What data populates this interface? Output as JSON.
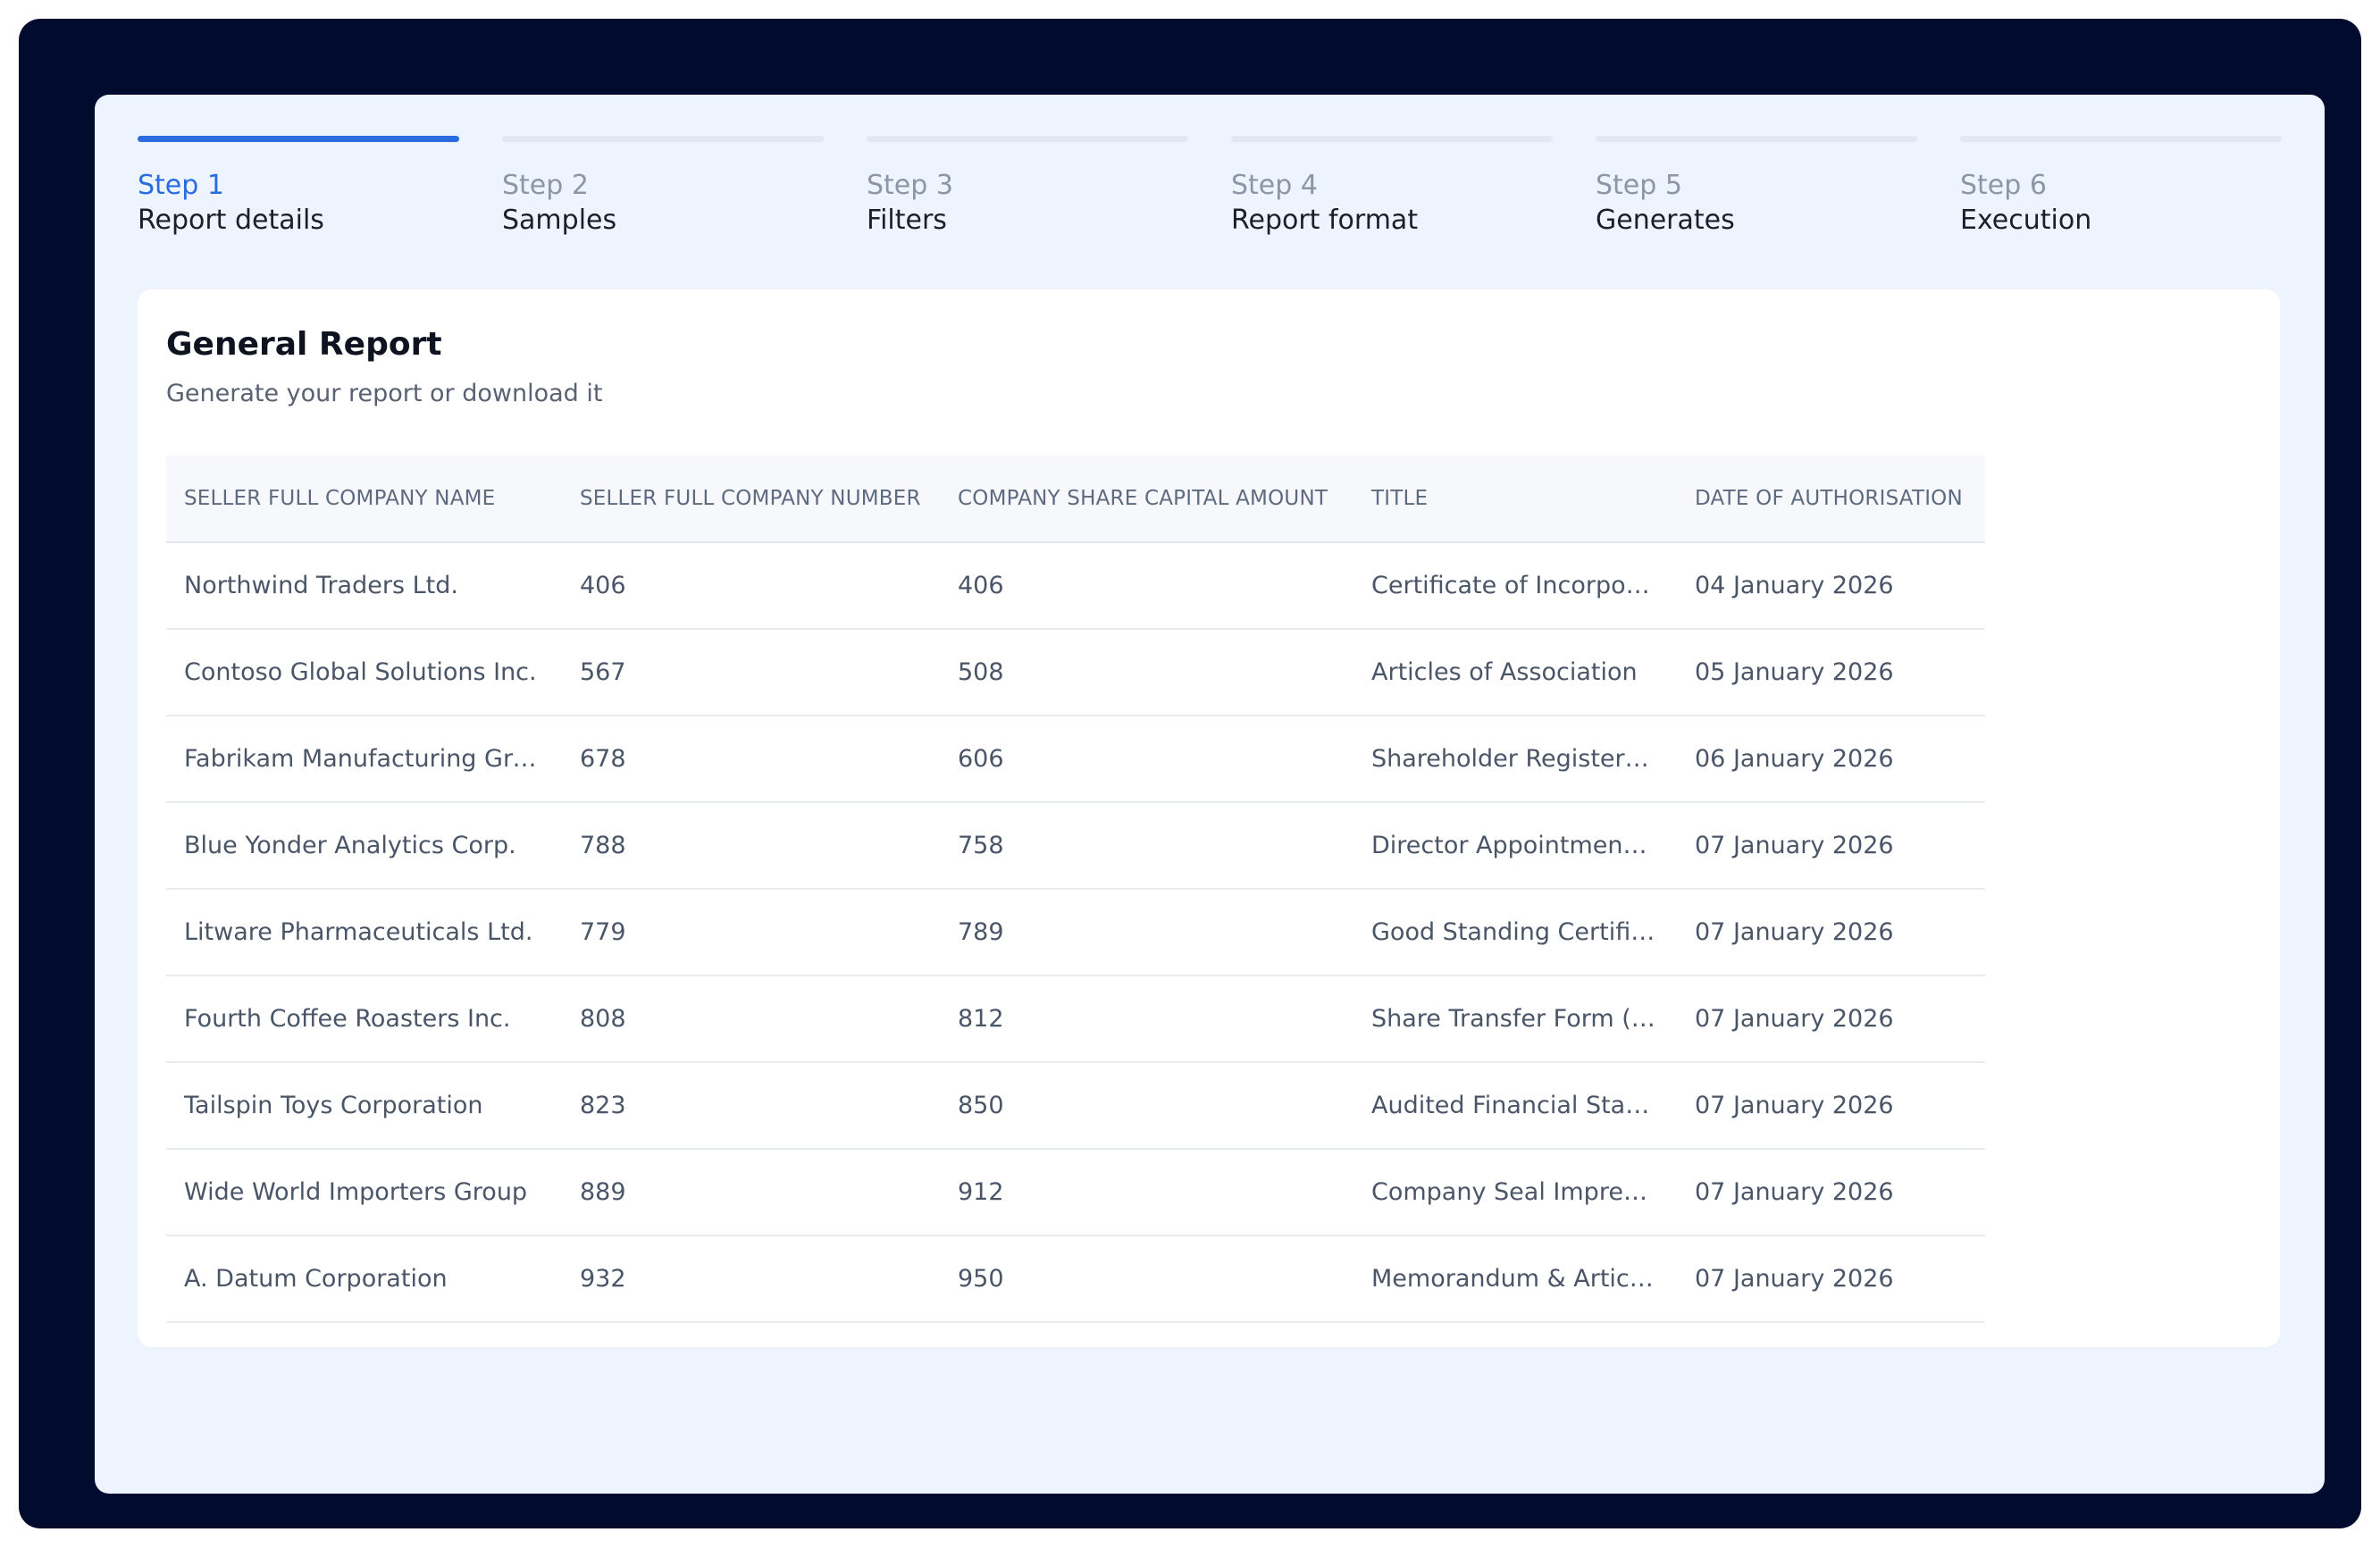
{
  "stepper": {
    "steps": [
      {
        "number": "Step 1",
        "title": "Report details",
        "active": true
      },
      {
        "number": "Step 2",
        "title": "Samples",
        "active": false
      },
      {
        "number": "Step 3",
        "title": "Filters",
        "active": false
      },
      {
        "number": "Step 4",
        "title": "Report format",
        "active": false
      },
      {
        "number": "Step 5",
        "title": "Generates",
        "active": false
      },
      {
        "number": "Step 6",
        "title": "Execution",
        "active": false
      }
    ]
  },
  "report": {
    "title": "General Report",
    "subtitle": "Generate your report or download it"
  },
  "table": {
    "columns": [
      "SELLER FULL COMPANY NAME",
      "SELLER FULL COMPANY NUMBER",
      "COMPANY SHARE CAPITAL AMOUNT",
      "TITLE",
      "DATE OF AUTHORISATION"
    ],
    "rows": [
      [
        "Northwind Traders Ltd.",
        "406",
        "406",
        "Certificate of Incorpora...",
        "04 January 2026"
      ],
      [
        "Contoso Global Solutions Inc.",
        "567",
        "508",
        "Articles of Association",
        "05 January 2026"
      ],
      [
        "Fabrikam Manufacturing Grou...",
        "678",
        "606",
        "Shareholder Register Ex...",
        "06 January 2026"
      ],
      [
        "Blue Yonder Analytics Corp.",
        "788",
        "758",
        "Director Appointment L...",
        "07 January 2026"
      ],
      [
        "Litware Pharmaceuticals Ltd.",
        "779",
        "789",
        "Good Standing Certific...",
        "07 January 2026"
      ],
      [
        "Fourth Coffee Roasters Inc.",
        "808",
        "812",
        "Share Transfer Form (In...",
        "07 January 2026"
      ],
      [
        "Tailspin Toys Corporation",
        "823",
        "850",
        "Audited Financial State...",
        "07 January 2026"
      ],
      [
        "Wide World Importers Group",
        "889",
        "912",
        "Company Seal Impressi...",
        "07 January 2026"
      ],
      [
        "A. Datum Corporation",
        "932",
        "950",
        "Memorandum & Article...",
        "07 January 2026"
      ]
    ]
  },
  "colors": {
    "frame": "#000b2e",
    "panel": "#eef4fd",
    "accent": "#2a6ce0"
  }
}
